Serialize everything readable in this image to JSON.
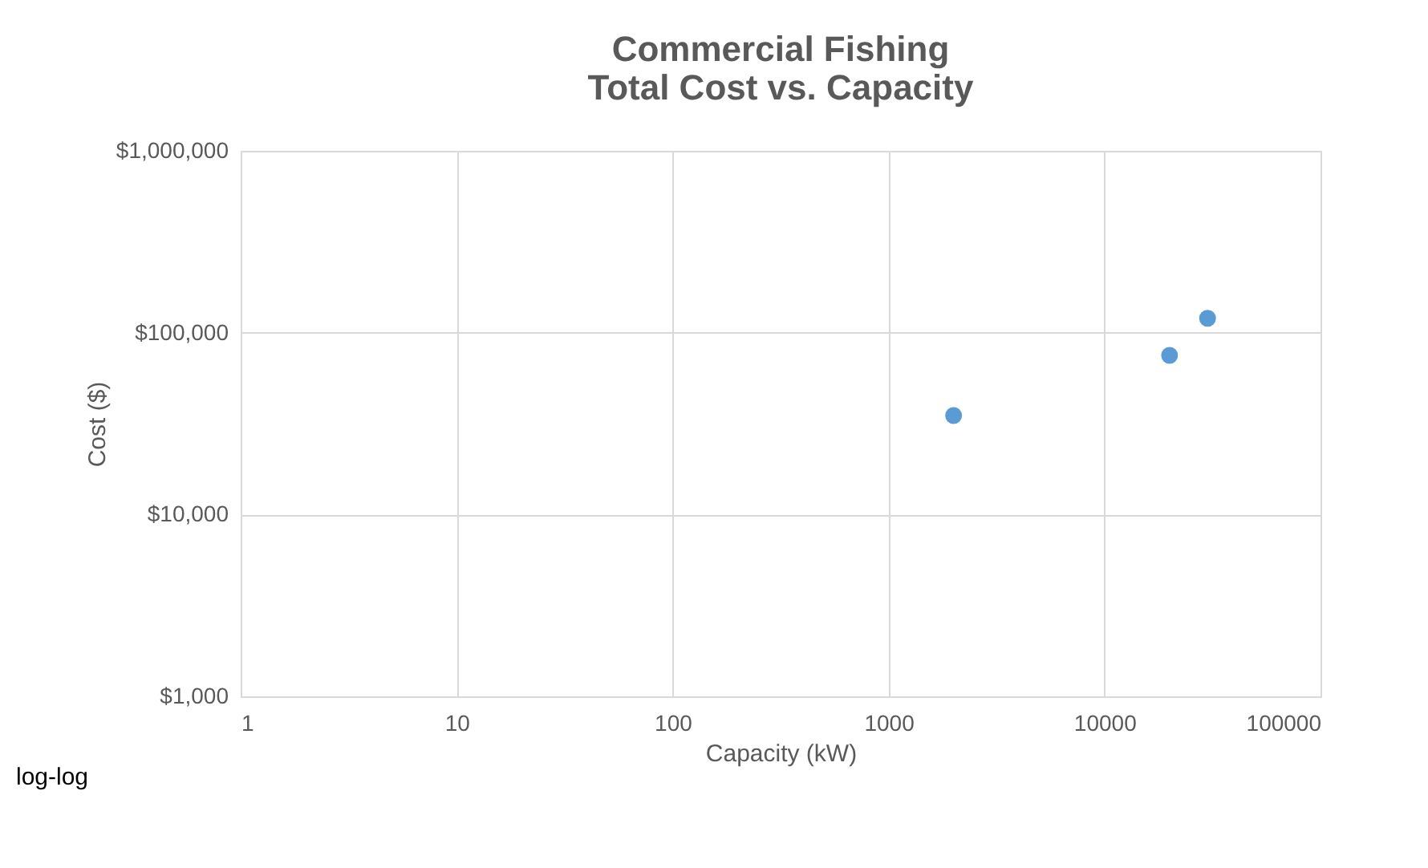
{
  "chart_data": {
    "type": "scatter",
    "title": [
      "Commercial Fishing",
      "Total Cost vs. Capacity"
    ],
    "xlabel": "Capacity (kW)",
    "ylabel": "Cost ($)",
    "x": [
      2000,
      20000,
      30000
    ],
    "series": [
      {
        "color": "#5b9bd5",
        "values": [
          35000,
          75000,
          120000
        ]
      }
    ],
    "log": "xy",
    "xlim": [
      1,
      100000
    ],
    "xticks": [
      1,
      10,
      100,
      1000,
      10000,
      100000
    ],
    "ylim": [
      1000,
      1000000
    ],
    "yticks": [
      {
        "value": 1000,
        "label": "$1,000"
      },
      {
        "value": 10000,
        "label": "$10,000"
      },
      {
        "value": 100000,
        "label": "$100,000"
      },
      {
        "value": 1000000,
        "label": "$1,000,000"
      }
    ],
    "grid": true,
    "marker": "circle",
    "annotations": [
      "log-log"
    ]
  }
}
